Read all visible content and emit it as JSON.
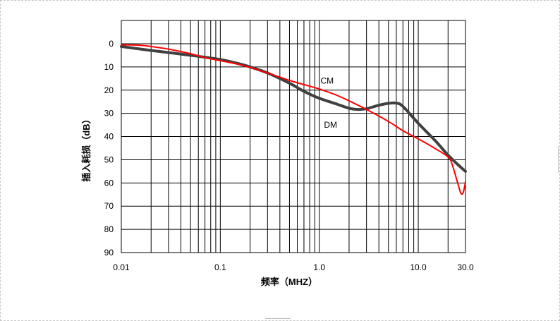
{
  "chart_data": {
    "type": "line",
    "title": "",
    "xlabel": "频率（MHZ）",
    "ylabel": "插入耗损（dB）",
    "x_scale": "log",
    "xlim": [
      0.01,
      30.0
    ],
    "ylim": [
      0,
      90
    ],
    "y_inverted": true,
    "grid": true,
    "x_tick_labels": [
      {
        "value": 0.01,
        "label": "0.01"
      },
      {
        "value": 0.1,
        "label": "0.1"
      },
      {
        "value": 1.0,
        "label": "1.0"
      },
      {
        "value": 10.0,
        "label": "10.0"
      },
      {
        "value": 30.0,
        "label": "30.0"
      }
    ],
    "y_ticks": [
      0,
      10,
      20,
      30,
      40,
      50,
      60,
      70,
      80,
      90
    ],
    "series": [
      {
        "name": "CM",
        "color": "#ff0000",
        "points": [
          [
            0.01,
            0.5
          ],
          [
            0.015,
            0.6
          ],
          [
            0.02,
            1.2
          ],
          [
            0.03,
            2.3
          ],
          [
            0.05,
            4.3
          ],
          [
            0.07,
            6.0
          ],
          [
            0.1,
            7.3
          ],
          [
            0.15,
            8.8
          ],
          [
            0.2,
            10.2
          ],
          [
            0.3,
            12.6
          ],
          [
            0.5,
            15.8
          ],
          [
            0.7,
            17.6
          ],
          [
            1.0,
            19.5
          ],
          [
            1.5,
            22.2
          ],
          [
            2.0,
            24.6
          ],
          [
            3.0,
            28.3
          ],
          [
            5.0,
            33.5
          ],
          [
            7.0,
            37.5
          ],
          [
            10.0,
            41.0
          ],
          [
            15.0,
            45.3
          ],
          [
            20.0,
            48.8
          ],
          [
            22.0,
            52.0
          ],
          [
            25.0,
            60.0
          ],
          [
            27.0,
            64.5
          ],
          [
            28.5,
            64.0
          ],
          [
            30.0,
            59.5
          ]
        ]
      },
      {
        "name": "DM",
        "color": "#404040",
        "points": [
          [
            0.01,
            1.2
          ],
          [
            0.02,
            2.9
          ],
          [
            0.03,
            3.8
          ],
          [
            0.05,
            5.0
          ],
          [
            0.07,
            5.8
          ],
          [
            0.1,
            6.8
          ],
          [
            0.15,
            8.5
          ],
          [
            0.2,
            10.0
          ],
          [
            0.3,
            12.6
          ],
          [
            0.5,
            17.0
          ],
          [
            0.7,
            20.5
          ],
          [
            1.0,
            23.5
          ],
          [
            1.5,
            26.0
          ],
          [
            2.0,
            27.8
          ],
          [
            2.5,
            28.3
          ],
          [
            3.0,
            28.0
          ],
          [
            4.0,
            26.5
          ],
          [
            5.0,
            25.7
          ],
          [
            6.0,
            25.6
          ],
          [
            7.0,
            27.0
          ],
          [
            10.0,
            34.3
          ],
          [
            15.0,
            42.0
          ],
          [
            20.0,
            48.0
          ],
          [
            25.0,
            52.0
          ],
          [
            30.0,
            55.0
          ]
        ]
      }
    ],
    "annotations": [
      {
        "text": "CM",
        "x": 1.2,
        "y": 16.0
      },
      {
        "text": "DM",
        "x": 1.3,
        "y": 35.0
      }
    ]
  }
}
